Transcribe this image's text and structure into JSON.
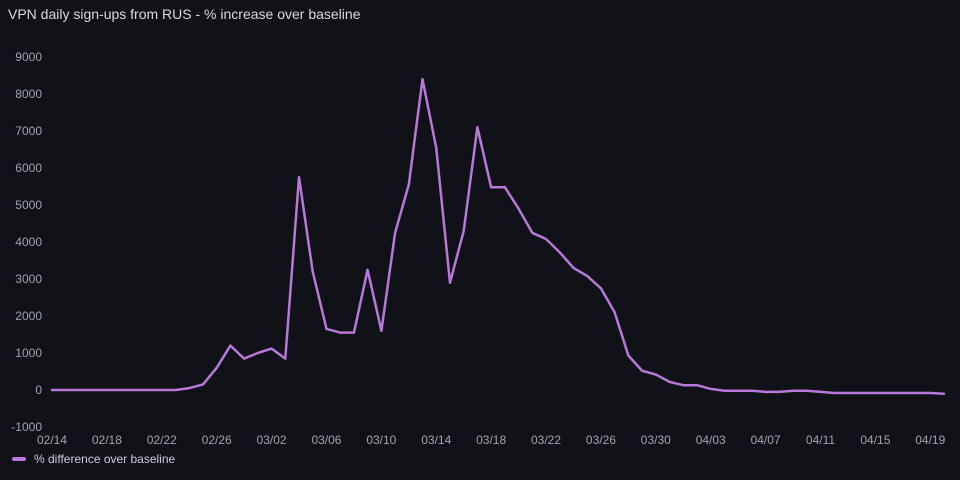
{
  "panel": {
    "title": "VPN daily sign-ups from RUS - % increase over baseline"
  },
  "legend": {
    "placement": "bottom-left"
  },
  "chart_data": {
    "type": "line",
    "title": "VPN daily sign-ups from RUS - % increase over baseline",
    "xlabel": "",
    "ylabel": "",
    "ylim": [
      -1000,
      9000
    ],
    "yticks": [
      -1000,
      0,
      1000,
      2000,
      3000,
      4000,
      5000,
      6000,
      7000,
      8000,
      9000
    ],
    "xticks": [
      "02/14",
      "02/18",
      "02/22",
      "02/26",
      "03/02",
      "03/06",
      "03/10",
      "03/14",
      "03/18",
      "03/22",
      "03/26",
      "03/30",
      "04/03",
      "04/07",
      "04/11",
      "04/15",
      "04/19"
    ],
    "grid": false,
    "legend_placement": "bottom-left",
    "x": [
      "02/14",
      "02/15",
      "02/16",
      "02/17",
      "02/18",
      "02/19",
      "02/20",
      "02/21",
      "02/22",
      "02/23",
      "02/24",
      "02/25",
      "02/26",
      "02/27",
      "02/28",
      "03/01",
      "03/02",
      "03/03",
      "03/04",
      "03/05",
      "03/06",
      "03/07",
      "03/08",
      "03/09",
      "03/10",
      "03/11",
      "03/12",
      "03/13",
      "03/14",
      "03/15",
      "03/16",
      "03/17",
      "03/18",
      "03/19",
      "03/20",
      "03/21",
      "03/22",
      "03/23",
      "03/24",
      "03/25",
      "03/26",
      "03/27",
      "03/28",
      "03/29",
      "03/30",
      "03/31",
      "04/01",
      "04/02",
      "04/03",
      "04/04",
      "04/05",
      "04/06",
      "04/07",
      "04/08",
      "04/09",
      "04/10",
      "04/11",
      "04/12",
      "04/13",
      "04/14",
      "04/15",
      "04/16",
      "04/17",
      "04/18",
      "04/19",
      "04/20"
    ],
    "series": [
      {
        "name": "% difference over baseline",
        "color": "#b877d9",
        "values": [
          0,
          0,
          0,
          0,
          0,
          0,
          0,
          0,
          0,
          0,
          50,
          150,
          600,
          1200,
          850,
          1000,
          1120,
          850,
          5750,
          3200,
          1650,
          1550,
          1550,
          3250,
          1600,
          4250,
          5550,
          8400,
          6550,
          2900,
          4300,
          7100,
          5480,
          5480,
          4900,
          4250,
          4080,
          3720,
          3300,
          3080,
          2750,
          2100,
          930,
          520,
          420,
          220,
          130,
          130,
          30,
          -20,
          -20,
          -20,
          -50,
          -50,
          -20,
          -20,
          -50,
          -80,
          -80,
          -80,
          -80,
          -80,
          -80,
          -80,
          -80,
          -100
        ]
      }
    ]
  }
}
